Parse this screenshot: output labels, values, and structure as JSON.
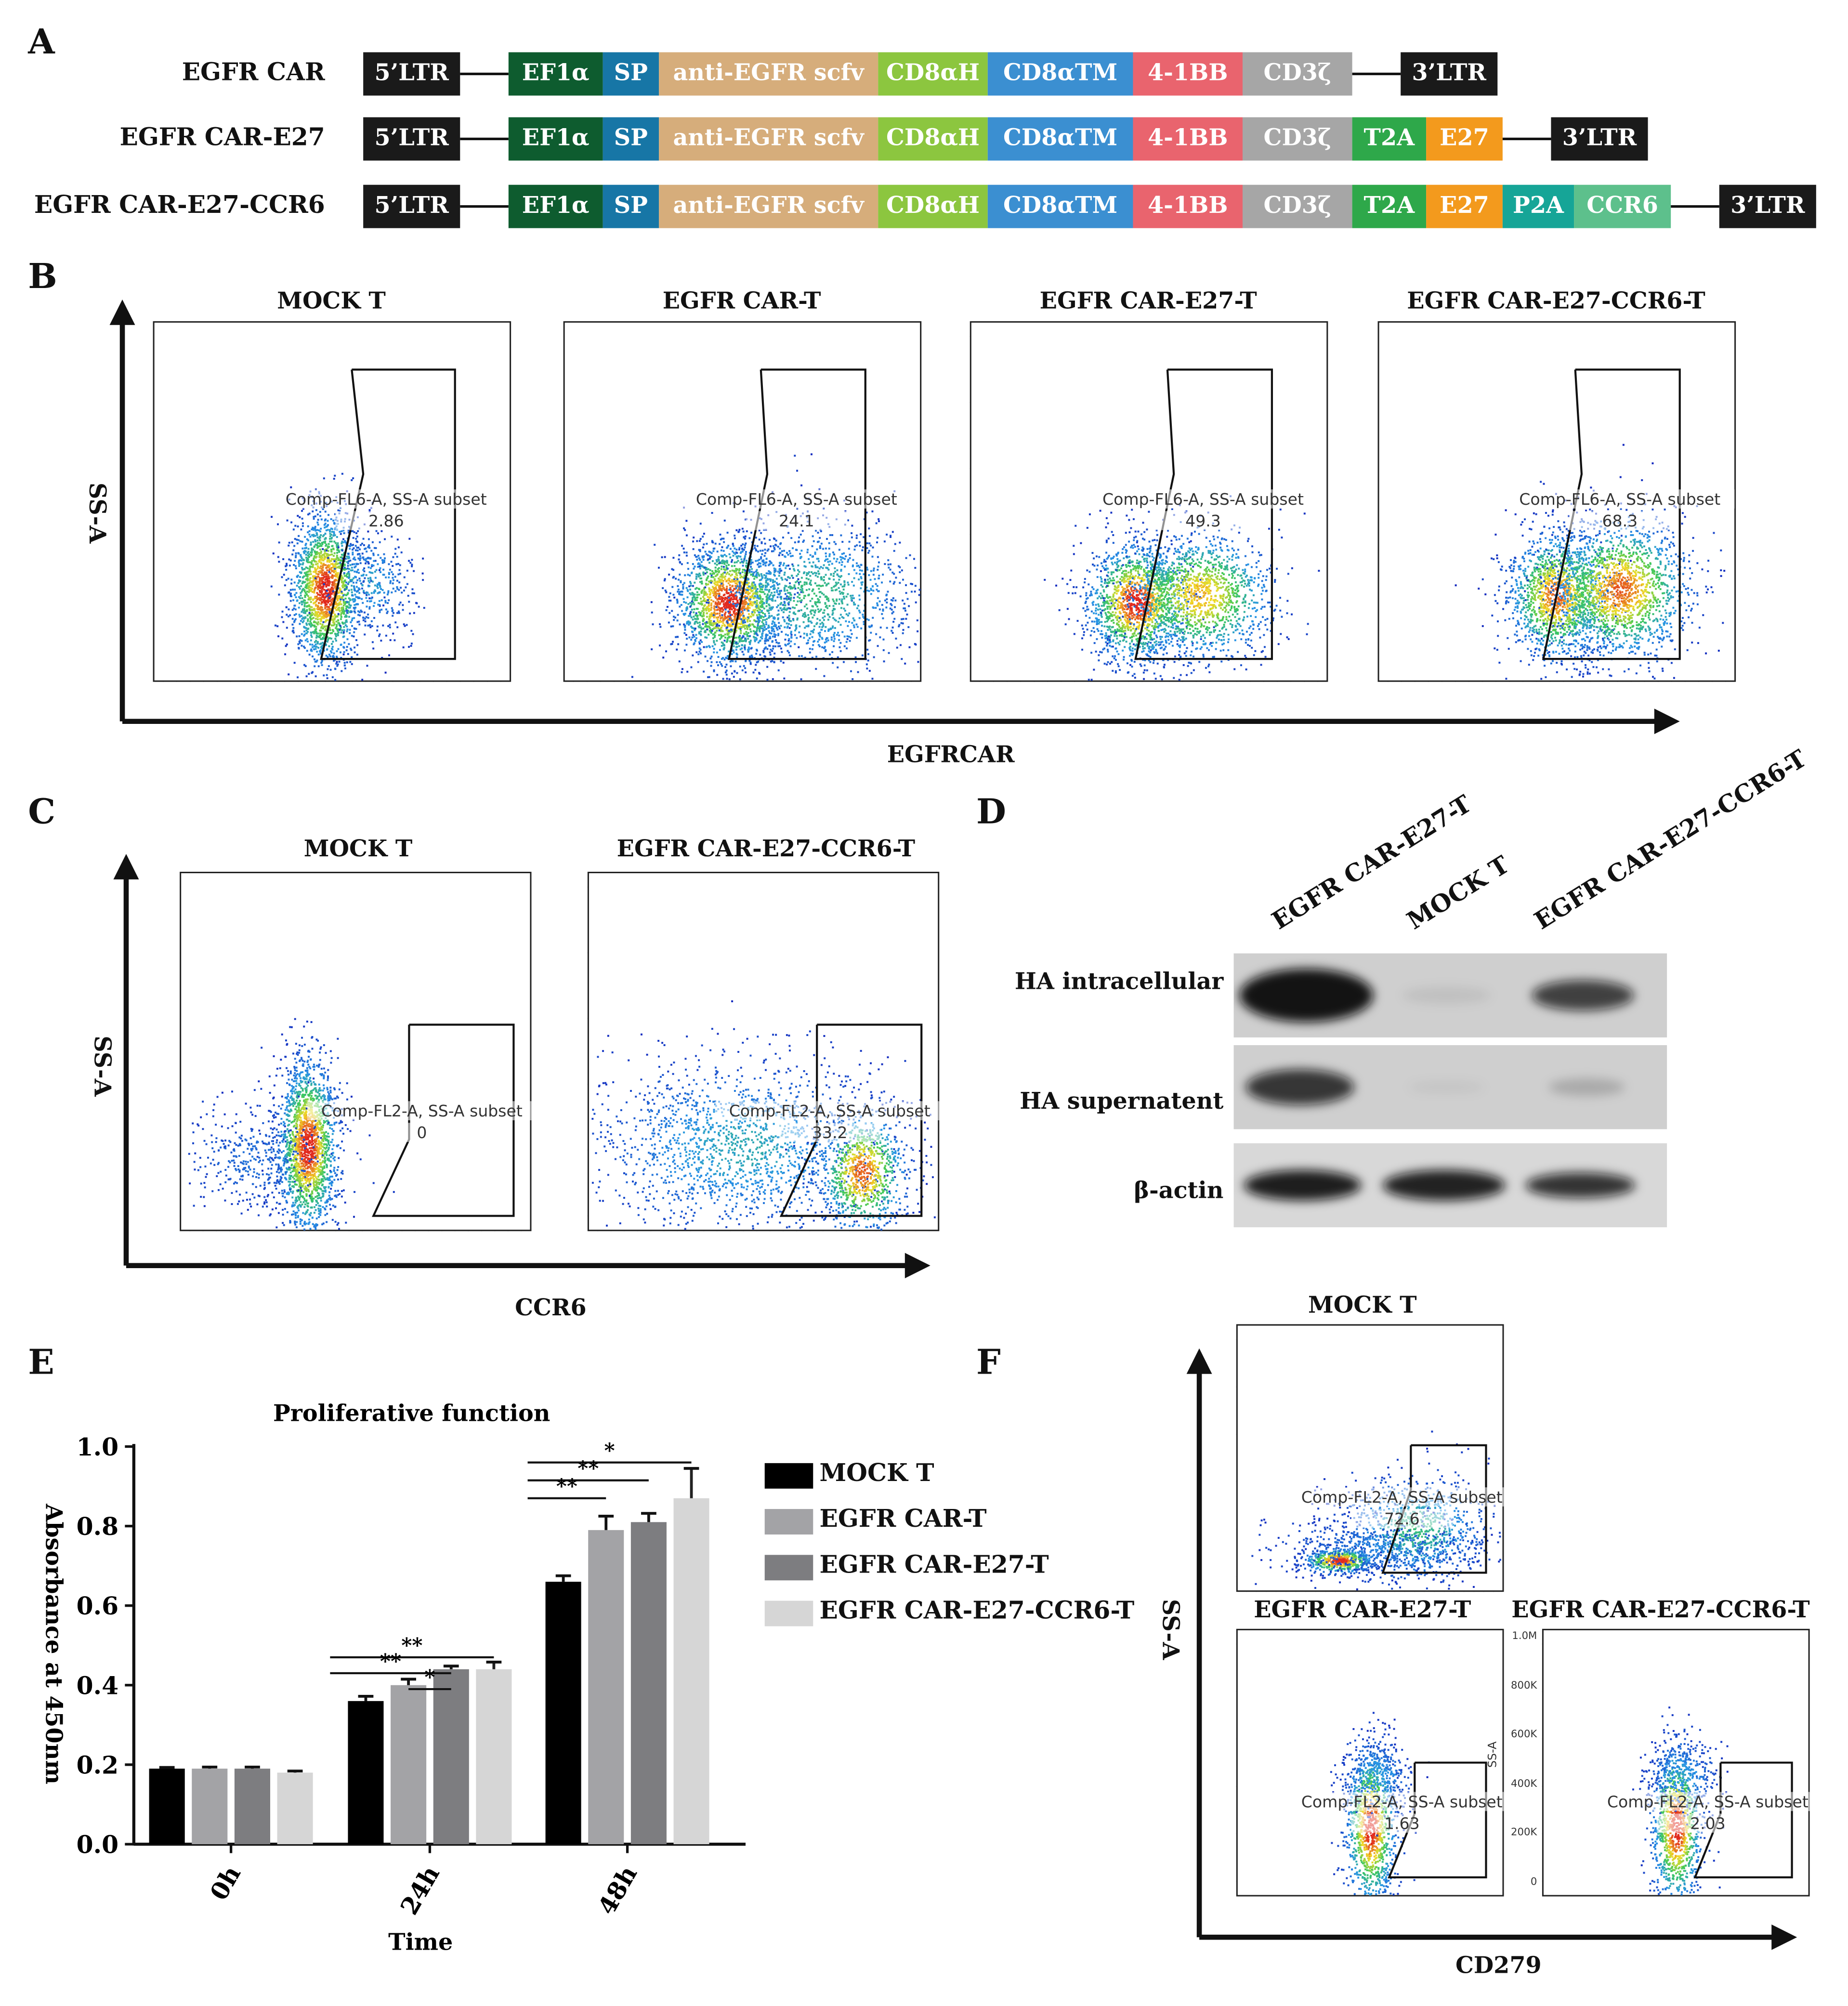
{
  "panel_labels": {
    "A": "A",
    "B": "B",
    "C": "C",
    "D": "D",
    "E": "E",
    "F": "F"
  },
  "colors": {
    "ltr": "#1a1a1a",
    "ef1a": "#0e5c2f",
    "sp": "#1776a6",
    "scfv": "#d6ad7b",
    "cd8h": "#8cc63f",
    "cd8tm": "#3b8fd1",
    "bb": "#e9646e",
    "cd3z": "#a6a6a6",
    "t2a": "#2ea84a",
    "e27": "#f39a1d",
    "p2a": "#16a597",
    "ccr6": "#5dc08c",
    "bar_mock": "#000000",
    "bar_car": "#a3a3a6",
    "bar_e27": "#7d7d80",
    "bar_ccr6": "#d6d6d6"
  },
  "constructs": [
    {
      "name": "EGFR CAR",
      "segments": [
        "5’LTR",
        "EF1α",
        "SP",
        "anti-EGFR scfv",
        "CD8αH",
        "CD8αTM",
        "4-1BB",
        "CD3ζ",
        "3’LTR"
      ]
    },
    {
      "name": "EGFR CAR-E27",
      "segments": [
        "5’LTR",
        "EF1α",
        "SP",
        "anti-EGFR scfv",
        "CD8αH",
        "CD8αTM",
        "4-1BB",
        "CD3ζ",
        "T2A",
        "E27",
        "3’LTR"
      ]
    },
    {
      "name": "EGFR CAR-E27-CCR6",
      "segments": [
        "5’LTR",
        "EF1α",
        "SP",
        "anti-EGFR scfv",
        "CD8αH",
        "CD8αTM",
        "4-1BB",
        "CD3ζ",
        "T2A",
        "E27",
        "P2A",
        "CCR6",
        "3’LTR"
      ]
    }
  ],
  "flow_B": {
    "y_label": "SS-A",
    "x_label": "EGFRCAR",
    "plots": [
      {
        "title": "MOCK T",
        "gate_label": "Comp-FL6-A, SS-A subset",
        "value": "2.86"
      },
      {
        "title": "EGFR CAR-T",
        "gate_label": "Comp-FL6-A, SS-A subset",
        "value": "24.1"
      },
      {
        "title": "EGFR CAR-E27-T",
        "gate_label": "Comp-FL6-A, SS-A subset",
        "value": "49.3"
      },
      {
        "title": "EGFR CAR-E27-CCR6-T",
        "gate_label": "Comp-FL6-A, SS-A subset",
        "value": "68.3"
      }
    ]
  },
  "flow_C": {
    "y_label": "SS-A",
    "x_label": "CCR6",
    "plots": [
      {
        "title": "MOCK T",
        "gate_label": "Comp-FL2-A, SS-A subset",
        "value": "0"
      },
      {
        "title": "EGFR CAR-E27-CCR6-T",
        "gate_label": "Comp-FL2-A, SS-A subset",
        "value": "33.2"
      }
    ]
  },
  "western_D": {
    "lanes": [
      "EGFR CAR-E27-T",
      "MOCK T",
      "EGFR CAR-E27-CCR6-T"
    ],
    "rows": [
      "HA intracellular",
      "HA supernatent",
      "β-actin"
    ]
  },
  "flow_F": {
    "y_label": "SS-A",
    "x_label": "CD279",
    "inner_axis_label": "SS-A",
    "y_ticks": [
      "1.0M",
      "800K",
      "600K",
      "400K",
      "200K",
      "0"
    ],
    "plots": [
      {
        "title": "MOCK T",
        "gate_label": "Comp-FL2-A, SS-A subset",
        "value": "72.6"
      },
      {
        "title": "EGFR CAR-E27-T",
        "gate_label": "Comp-FL2-A, SS-A subset",
        "value": "1.63"
      },
      {
        "title": "EGFR CAR-E27-CCR6-T",
        "gate_label": "Comp-FL2-A, SS-A subset",
        "value": "2.03"
      }
    ]
  },
  "chart_data": {
    "type": "bar",
    "title": "Proliferative function",
    "xlabel": "Time",
    "ylabel": "Absorbance at 450nm",
    "ylim": [
      0,
      1.0
    ],
    "yticks": [
      "0.0",
      "0.2",
      "0.4",
      "0.6",
      "0.8",
      "1.0"
    ],
    "categories": [
      "0h",
      "24h",
      "48h"
    ],
    "series": [
      {
        "name": "MOCK T",
        "values": [
          0.19,
          0.36,
          0.66
        ],
        "errors": [
          0.003,
          0.012,
          0.015
        ]
      },
      {
        "name": "EGFR CAR-T",
        "values": [
          0.19,
          0.4,
          0.79
        ],
        "errors": [
          0.004,
          0.015,
          0.035
        ]
      },
      {
        "name": "EGFR CAR-E27-T",
        "values": [
          0.19,
          0.44,
          0.81
        ],
        "errors": [
          0.004,
          0.008,
          0.022
        ]
      },
      {
        "name": "EGFR CAR-E27-CCR6-T",
        "values": [
          0.18,
          0.44,
          0.87
        ],
        "errors": [
          0.004,
          0.018,
          0.075
        ]
      }
    ],
    "significance": [
      {
        "group": "24h",
        "from": 0,
        "to": 3,
        "label": "**"
      },
      {
        "group": "24h",
        "from": 0,
        "to": 2,
        "label": "**"
      },
      {
        "group": "24h",
        "from": 1,
        "to": 2,
        "label": "*"
      },
      {
        "group": "48h",
        "from": 0,
        "to": 3,
        "label": "*"
      },
      {
        "group": "48h",
        "from": 0,
        "to": 2,
        "label": "**"
      },
      {
        "group": "48h",
        "from": 0,
        "to": 1,
        "label": "**"
      }
    ]
  }
}
